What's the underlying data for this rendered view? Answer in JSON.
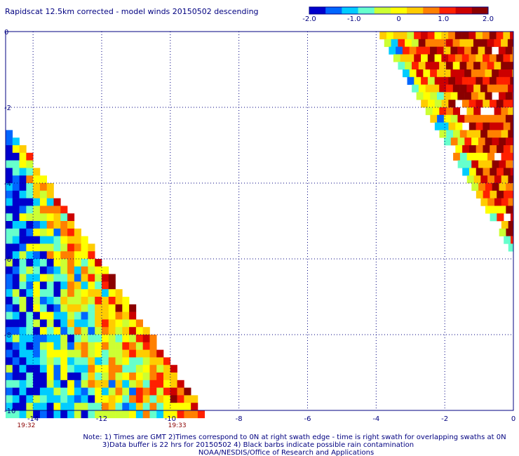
{
  "header": {
    "title": "Rapidscat 12.5km corrected - model winds 20150502 descending"
  },
  "colorbar": {
    "tick_labels": [
      "-2.0",
      "-1.0",
      "0",
      "1.0",
      "2.0"
    ],
    "tick_values": [
      -2.0,
      -1.0,
      0,
      1.0,
      2.0
    ],
    "range": [
      -2.0,
      2.0
    ],
    "colors": [
      "#0000cc",
      "#0066ff",
      "#00ccff",
      "#66ffcc",
      "#ccff33",
      "#ffff00",
      "#ffcc00",
      "#ff8000",
      "#ff2000",
      "#cc0000",
      "#8b0000"
    ]
  },
  "chart_data": {
    "type": "heatmap",
    "title": "Rapidscat 12.5km corrected - model winds 20150502 descending",
    "xlim": [
      -14.8,
      0
    ],
    "ylim": [
      0,
      -10
    ],
    "x_ticks": [
      -14,
      -12,
      -10,
      -8,
      -6,
      -4,
      -2,
      0
    ],
    "x_tick_labels": [
      "-14",
      "-12",
      "-10",
      "-8",
      "-6",
      "-4",
      "-2",
      "0"
    ],
    "y_ticks": [
      0,
      -2,
      -4,
      -6,
      -8,
      -10
    ],
    "y_tick_labels": [
      "0",
      "-2",
      "-4",
      "-6",
      "-8",
      "-10"
    ],
    "grid": true,
    "cell_size_deg": 0.2,
    "value_range": [
      -2.0,
      2.0
    ],
    "swath_times": [
      {
        "x": -14.2,
        "label": "19:32"
      },
      {
        "x": -9.8,
        "label": "19:33"
      }
    ],
    "swaths": [
      {
        "name": "",
        "lat_start": -2.6,
        "lat_end": -10,
        "edge_lon_at_start": -14.8,
        "edge_slope_lon_per_lat": -0.676,
        "width_deg_at_end": 5.5,
        "zone_values": [
          {
            "band": [
              0.0,
              0.12
            ],
            "value": 1.5
          },
          {
            "band": [
              0.12,
              0.3
            ],
            "value": 0.7
          },
          {
            "band": [
              0.3,
              0.55
            ],
            "value": 0.3
          },
          {
            "band": [
              0.55,
              0.8
            ],
            "value": -0.4
          },
          {
            "band": [
              0.8,
              1.0
            ],
            "value": -1.0
          }
        ]
      },
      {
        "name": "",
        "lat_start": 0,
        "lat_end": -5.6,
        "edge_lon_at_start": -3.9,
        "edge_slope_lon_per_lat": -0.67,
        "width_deg_at_end": 3.8,
        "zone_values": [
          {
            "band": [
              0.0,
              0.1
            ],
            "value": 0.2
          },
          {
            "band": [
              0.1,
              0.25
            ],
            "value": 1.0
          },
          {
            "band": [
              0.25,
              0.5
            ],
            "value": 1.7
          },
          {
            "band": [
              0.5,
              1.0
            ],
            "value": 2.0
          }
        ]
      }
    ]
  },
  "notes": {
    "line1": "Note: 1) Times are GMT 2)Times correspond to 0N at right swath edge - time is right swath for overlapping swaths at 0N",
    "line2": "3)Data buffer is 22 hrs for 20150502 4) Black barbs indicate possible rain contamination",
    "line3": "NOAA/NESDIS/Office of Research and Applications"
  }
}
